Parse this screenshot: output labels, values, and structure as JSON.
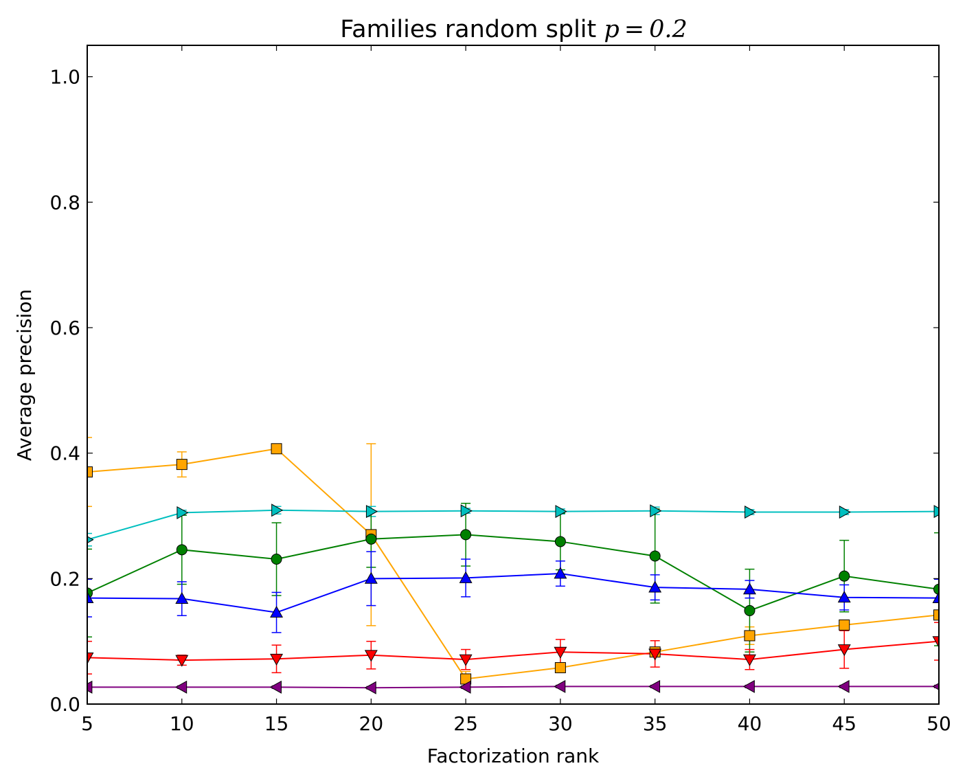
{
  "chart_data": {
    "type": "line",
    "title_text": "Families random split ",
    "title_math": "p = 0.2",
    "xlabel": "Factorization rank",
    "ylabel": "Average precision",
    "xlim": [
      5,
      50
    ],
    "ylim": [
      0.0,
      1.05
    ],
    "x": [
      5,
      10,
      15,
      20,
      25,
      30,
      35,
      40,
      45,
      50
    ],
    "xticks": [
      "5",
      "10",
      "15",
      "20",
      "25",
      "30",
      "35",
      "40",
      "45",
      "50"
    ],
    "yticks": [
      "0.0",
      "0.2",
      "0.4",
      "0.6",
      "0.8",
      "1.0"
    ],
    "ytick_values": [
      0.0,
      0.2,
      0.4,
      0.6,
      0.8,
      1.0
    ],
    "grid": false,
    "series": [
      {
        "color": "#ffa500",
        "marker": "square",
        "values": [
          0.37,
          0.382,
          0.407,
          0.27,
          0.04,
          0.058,
          0.083,
          0.109,
          0.126,
          0.142
        ],
        "err": [
          0.055,
          0.02,
          0.0,
          0.145,
          0.012,
          0.006,
          0.006,
          0.014,
          0.008,
          0.006
        ]
      },
      {
        "color": "#00bfbf",
        "marker": "triangle-right",
        "values": [
          0.262,
          0.305,
          0.309,
          0.307,
          0.308,
          0.307,
          0.308,
          0.306,
          0.306,
          0.307
        ],
        "err": [
          0.01,
          0.004,
          0.006,
          0.008,
          0.004,
          0.004,
          0.006,
          0.004,
          0.004,
          0.004
        ]
      },
      {
        "color": "#008000",
        "marker": "circle",
        "values": [
          0.177,
          0.246,
          0.231,
          0.263,
          0.27,
          0.259,
          0.236,
          0.149,
          0.204,
          0.183
        ],
        "err": [
          0.07,
          0.055,
          0.058,
          0.045,
          0.05,
          0.045,
          0.075,
          0.066,
          0.057,
          0.09
        ]
      },
      {
        "color": "#0000ff",
        "marker": "triangle-up",
        "values": [
          0.169,
          0.168,
          0.146,
          0.2,
          0.201,
          0.208,
          0.186,
          0.183,
          0.17,
          0.169
        ],
        "err": [
          0.03,
          0.027,
          0.032,
          0.043,
          0.03,
          0.02,
          0.02,
          0.014,
          0.02,
          0.03
        ]
      },
      {
        "color": "#ff0000",
        "marker": "triangle-down",
        "values": [
          0.074,
          0.07,
          0.072,
          0.078,
          0.071,
          0.083,
          0.08,
          0.071,
          0.087,
          0.1
        ],
        "err": [
          0.026,
          0.008,
          0.022,
          0.022,
          0.016,
          0.02,
          0.021,
          0.016,
          0.03,
          0.03
        ]
      },
      {
        "color": "#800080",
        "marker": "triangle-left",
        "values": [
          0.027,
          0.027,
          0.027,
          0.026,
          0.027,
          0.028,
          0.028,
          0.028,
          0.028,
          0.028
        ],
        "err": [
          0.002,
          0.002,
          0.002,
          0.002,
          0.002,
          0.002,
          0.002,
          0.002,
          0.002,
          0.002
        ]
      }
    ]
  }
}
